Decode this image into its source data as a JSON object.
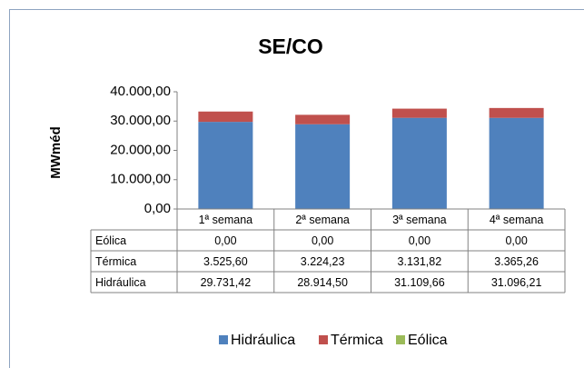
{
  "chart_data": {
    "type": "stacked_bar",
    "title": "SE/CO",
    "y_label": "MWméd",
    "categories": [
      "1ª semana",
      "2ª semana",
      "3ª semana",
      "4ª semana"
    ],
    "series": [
      {
        "name": "Hidráulica",
        "color": "#4f81bd",
        "values": [
          29731.42,
          28914.5,
          31109.66,
          31096.21
        ],
        "value_labels": [
          "29.731,42",
          "28.914,50",
          "31.109,66",
          "31.096,21"
        ]
      },
      {
        "name": "Térmica",
        "color": "#c0504d",
        "values": [
          3525.6,
          3224.23,
          3131.82,
          3365.26
        ],
        "value_labels": [
          "3.525,60",
          "3.224,23",
          "3.131,82",
          "3.365,26"
        ]
      },
      {
        "name": "Eólica",
        "color": "#9bbb59",
        "values": [
          0,
          0,
          0,
          0
        ],
        "value_labels": [
          "0,00",
          "0,00",
          "0,00",
          "0,00"
        ]
      }
    ],
    "ylim": [
      0,
      40000
    ],
    "yticks": [
      {
        "value": 0,
        "label": "0,00"
      },
      {
        "value": 10000,
        "label": "10.000,00"
      },
      {
        "value": 20000,
        "label": "20.000,00"
      },
      {
        "value": 30000,
        "label": "30.000,00"
      },
      {
        "value": 40000,
        "label": "40.000,00"
      }
    ],
    "legend": "bottom"
  }
}
